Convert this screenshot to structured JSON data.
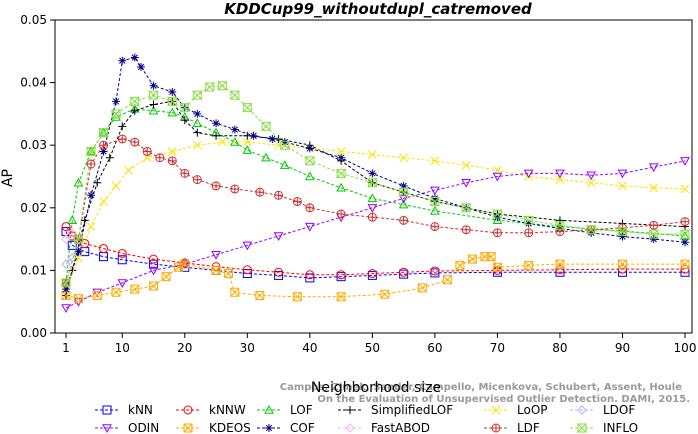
{
  "chart_data": {
    "type": "line",
    "title": "KDDCup99_withoutdupl_catremoved",
    "xlabel": "Neighborhood size",
    "ylabel": "AP",
    "xlim": [
      1,
      100
    ],
    "ylim": [
      0,
      0.05
    ],
    "xticks": [
      "1",
      "10",
      "20",
      "30",
      "40",
      "50",
      "60",
      "70",
      "80",
      "90",
      "100"
    ],
    "yticks": [
      "0.00",
      "0.01",
      "0.02",
      "0.03",
      "0.04",
      "0.05"
    ],
    "legend_position": "bottom",
    "watermark": "Campos, Zimek, Sander, Campello, Micenkova, Schubert, Assent, Houle\nOn the Evaluation of Unsupervised Outlier Detection. DAMI, 2015.",
    "series": [
      {
        "name": "kNN",
        "color": "#0000ff",
        "marker": "square",
        "points": [
          [
            1,
            0.0162
          ],
          [
            2,
            0.014
          ],
          [
            4,
            0.013
          ],
          [
            7,
            0.0122
          ],
          [
            10,
            0.0117
          ],
          [
            15,
            0.011
          ],
          [
            20,
            0.0105
          ],
          [
            25,
            0.01
          ],
          [
            30,
            0.0095
          ],
          [
            35,
            0.0092
          ],
          [
            40,
            0.0088
          ],
          [
            45,
            0.009
          ],
          [
            50,
            0.0092
          ],
          [
            55,
            0.0094
          ],
          [
            60,
            0.0096
          ],
          [
            70,
            0.0097
          ],
          [
            80,
            0.0097
          ],
          [
            90,
            0.0097
          ],
          [
            100,
            0.0097
          ]
        ]
      },
      {
        "name": "kNNW",
        "color": "#ff0000",
        "marker": "circle",
        "points": [
          [
            1,
            0.017
          ],
          [
            2,
            0.0155
          ],
          [
            4,
            0.0143
          ],
          [
            7,
            0.0135
          ],
          [
            10,
            0.0127
          ],
          [
            15,
            0.0118
          ],
          [
            20,
            0.0112
          ],
          [
            25,
            0.0106
          ],
          [
            30,
            0.0101
          ],
          [
            35,
            0.0097
          ],
          [
            40,
            0.0093
          ],
          [
            45,
            0.0093
          ],
          [
            50,
            0.0095
          ],
          [
            55,
            0.0097
          ],
          [
            60,
            0.0099
          ],
          [
            70,
            0.01
          ],
          [
            80,
            0.0101
          ],
          [
            90,
            0.0102
          ],
          [
            100,
            0.0102
          ]
        ]
      },
      {
        "name": "LOF",
        "color": "#00cc00",
        "marker": "triangle",
        "points": [
          [
            1,
            0.008
          ],
          [
            2,
            0.018
          ],
          [
            3,
            0.024
          ],
          [
            5,
            0.029
          ],
          [
            7,
            0.032
          ],
          [
            9,
            0.0345
          ],
          [
            12,
            0.0358
          ],
          [
            15,
            0.0355
          ],
          [
            18,
            0.0352
          ],
          [
            20,
            0.0345
          ],
          [
            22,
            0.0335
          ],
          [
            25,
            0.032
          ],
          [
            28,
            0.0305
          ],
          [
            30,
            0.0292
          ],
          [
            33,
            0.028
          ],
          [
            36,
            0.0268
          ],
          [
            40,
            0.025
          ],
          [
            45,
            0.0232
          ],
          [
            50,
            0.0215
          ],
          [
            55,
            0.0205
          ],
          [
            60,
            0.0195
          ],
          [
            70,
            0.018
          ],
          [
            80,
            0.017
          ],
          [
            90,
            0.0163
          ],
          [
            100,
            0.0155
          ]
        ]
      },
      {
        "name": "SimplifiedLOF",
        "color": "#000000",
        "marker": "plus",
        "points": [
          [
            1,
            0.006
          ],
          [
            2,
            0.01
          ],
          [
            4,
            0.018
          ],
          [
            6,
            0.024
          ],
          [
            8,
            0.028
          ],
          [
            10,
            0.033
          ],
          [
            12,
            0.0355
          ],
          [
            15,
            0.0365
          ],
          [
            18,
            0.037
          ],
          [
            20,
            0.034
          ],
          [
            22,
            0.032
          ],
          [
            25,
            0.0315
          ],
          [
            30,
            0.0315
          ],
          [
            35,
            0.031
          ],
          [
            40,
            0.03
          ],
          [
            45,
            0.0275
          ],
          [
            50,
            0.024
          ],
          [
            55,
            0.0225
          ],
          [
            60,
            0.021
          ],
          [
            70,
            0.019
          ],
          [
            80,
            0.018
          ],
          [
            90,
            0.0175
          ],
          [
            100,
            0.017
          ]
        ]
      },
      {
        "name": "LoOP",
        "color": "#ffe000",
        "marker": "cross",
        "points": [
          [
            1,
            0.007
          ],
          [
            3,
            0.012
          ],
          [
            5,
            0.017
          ],
          [
            7,
            0.021
          ],
          [
            9,
            0.0235
          ],
          [
            11,
            0.026
          ],
          [
            14,
            0.028
          ],
          [
            18,
            0.029
          ],
          [
            22,
            0.03
          ],
          [
            26,
            0.0305
          ],
          [
            30,
            0.0305
          ],
          [
            35,
            0.03
          ],
          [
            40,
            0.0295
          ],
          [
            45,
            0.029
          ],
          [
            50,
            0.0285
          ],
          [
            55,
            0.028
          ],
          [
            60,
            0.0275
          ],
          [
            65,
            0.0268
          ],
          [
            70,
            0.026
          ],
          [
            75,
            0.025
          ],
          [
            80,
            0.0245
          ],
          [
            85,
            0.024
          ],
          [
            90,
            0.0235
          ],
          [
            95,
            0.0232
          ],
          [
            100,
            0.023
          ]
        ]
      },
      {
        "name": "LDOF",
        "color": "#b0b0ff",
        "marker": "diamond",
        "points": [
          [
            1,
            0.011
          ],
          [
            2,
            0.012
          ],
          [
            3,
            0.013
          ]
        ]
      },
      {
        "name": "ODIN",
        "color": "#9900ff",
        "marker": "triangle-down",
        "points": [
          [
            1,
            0.004
          ],
          [
            3,
            0.005
          ],
          [
            6,
            0.0065
          ],
          [
            10,
            0.008
          ],
          [
            15,
            0.01
          ],
          [
            20,
            0.011
          ],
          [
            25,
            0.0125
          ],
          [
            30,
            0.014
          ],
          [
            35,
            0.0155
          ],
          [
            40,
            0.017
          ],
          [
            45,
            0.0185
          ],
          [
            50,
            0.02
          ],
          [
            55,
            0.0215
          ],
          [
            60,
            0.0228
          ],
          [
            65,
            0.024
          ],
          [
            70,
            0.025
          ],
          [
            75,
            0.0255
          ],
          [
            80,
            0.0255
          ],
          [
            85,
            0.0252
          ],
          [
            90,
            0.0255
          ],
          [
            95,
            0.0265
          ],
          [
            100,
            0.0275
          ]
        ]
      },
      {
        "name": "KDEOS",
        "color": "#ffaa00",
        "marker": "square-x",
        "points": [
          [
            1,
            0.006
          ],
          [
            3,
            0.0055
          ],
          [
            6,
            0.006
          ],
          [
            9,
            0.0065
          ],
          [
            12,
            0.007
          ],
          [
            15,
            0.0075
          ],
          [
            17,
            0.009
          ],
          [
            19,
            0.0105
          ],
          [
            20,
            0.011
          ],
          [
            25,
            0.01
          ],
          [
            27,
            0.0095
          ],
          [
            28,
            0.0065
          ],
          [
            32,
            0.006
          ],
          [
            38,
            0.0058
          ],
          [
            45,
            0.0058
          ],
          [
            52,
            0.0062
          ],
          [
            58,
            0.0072
          ],
          [
            62,
            0.0085
          ],
          [
            64,
            0.0108
          ],
          [
            66,
            0.0118
          ],
          [
            68,
            0.0122
          ],
          [
            69,
            0.0122
          ],
          [
            70,
            0.0105
          ],
          [
            75,
            0.0108
          ],
          [
            80,
            0.011
          ],
          [
            90,
            0.011
          ],
          [
            100,
            0.011
          ]
        ]
      },
      {
        "name": "COF",
        "color": "#000080",
        "marker": "star",
        "points": [
          [
            1,
            0.007
          ],
          [
            3,
            0.013
          ],
          [
            5,
            0.022
          ],
          [
            7,
            0.029
          ],
          [
            9,
            0.037
          ],
          [
            10,
            0.0435
          ],
          [
            12,
            0.044
          ],
          [
            13,
            0.0425
          ],
          [
            15,
            0.0395
          ],
          [
            18,
            0.0385
          ],
          [
            20,
            0.036
          ],
          [
            22,
            0.035
          ],
          [
            25,
            0.0335
          ],
          [
            28,
            0.0325
          ],
          [
            31,
            0.0315
          ],
          [
            34,
            0.031
          ],
          [
            36,
            0.0305
          ],
          [
            40,
            0.0295
          ],
          [
            45,
            0.028
          ],
          [
            50,
            0.0255
          ],
          [
            55,
            0.0235
          ],
          [
            60,
            0.0215
          ],
          [
            65,
            0.02
          ],
          [
            70,
            0.0185
          ],
          [
            75,
            0.0175
          ],
          [
            80,
            0.0167
          ],
          [
            85,
            0.016
          ],
          [
            90,
            0.0154
          ],
          [
            95,
            0.015
          ],
          [
            100,
            0.0145
          ]
        ]
      },
      {
        "name": "FastABOD",
        "color": "#ffaaff",
        "marker": "diamond",
        "points": [
          [
            1,
            0.015
          ],
          [
            2,
            0.016
          ]
        ]
      },
      {
        "name": "LDF",
        "color": "#cc3333",
        "marker": "circle-plus",
        "points": [
          [
            1,
            0.008
          ],
          [
            3,
            0.015
          ],
          [
            5,
            0.027
          ],
          [
            7,
            0.03
          ],
          [
            10,
            0.031
          ],
          [
            12,
            0.0305
          ],
          [
            14,
            0.029
          ],
          [
            16,
            0.028
          ],
          [
            18,
            0.0275
          ],
          [
            20,
            0.0255
          ],
          [
            22,
            0.0245
          ],
          [
            25,
            0.0235
          ],
          [
            28,
            0.023
          ],
          [
            32,
            0.0225
          ],
          [
            35,
            0.022
          ],
          [
            38,
            0.021
          ],
          [
            40,
            0.02
          ],
          [
            45,
            0.019
          ],
          [
            50,
            0.0185
          ],
          [
            55,
            0.018
          ],
          [
            60,
            0.017
          ],
          [
            65,
            0.0165
          ],
          [
            70,
            0.016
          ],
          [
            75,
            0.016
          ],
          [
            80,
            0.0162
          ],
          [
            85,
            0.0165
          ],
          [
            90,
            0.0168
          ],
          [
            95,
            0.0172
          ],
          [
            100,
            0.0178
          ]
        ]
      },
      {
        "name": "INFLO",
        "color": "#88dd44",
        "marker": "hourglass",
        "points": [
          [
            1,
            0.008
          ],
          [
            3,
            0.015
          ],
          [
            5,
            0.029
          ],
          [
            7,
            0.032
          ],
          [
            9,
            0.035
          ],
          [
            12,
            0.037
          ],
          [
            15,
            0.038
          ],
          [
            18,
            0.037
          ],
          [
            20,
            0.036
          ],
          [
            22,
            0.038
          ],
          [
            24,
            0.0393
          ],
          [
            26,
            0.0395
          ],
          [
            28,
            0.038
          ],
          [
            30,
            0.036
          ],
          [
            33,
            0.033
          ],
          [
            36,
            0.03
          ],
          [
            40,
            0.0275
          ],
          [
            45,
            0.0255
          ],
          [
            50,
            0.024
          ],
          [
            55,
            0.0225
          ],
          [
            60,
            0.021
          ],
          [
            65,
            0.02
          ],
          [
            70,
            0.019
          ],
          [
            75,
            0.018
          ],
          [
            80,
            0.0172
          ],
          [
            85,
            0.0165
          ],
          [
            90,
            0.0162
          ],
          [
            95,
            0.0158
          ],
          [
            100,
            0.0158
          ]
        ]
      }
    ]
  }
}
